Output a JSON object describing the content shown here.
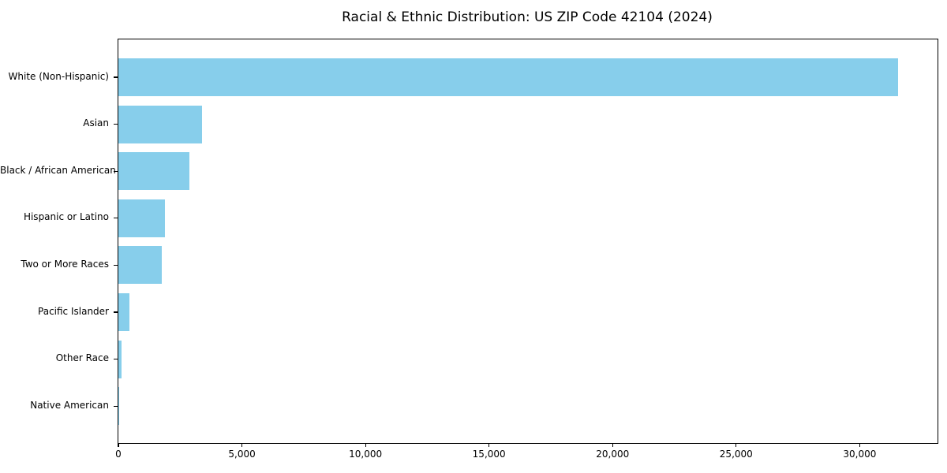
{
  "chart_data": {
    "type": "bar",
    "orientation": "horizontal",
    "title": "Racial & Ethnic Distribution: US ZIP Code 42104 (2024)",
    "categories": [
      "White (Non-Hispanic)",
      "Asian",
      "Black / African American",
      "Hispanic or Latino",
      "Two or More Races",
      "Pacific Islander",
      "Other Race",
      "Native American"
    ],
    "values": [
      31550,
      3400,
      2880,
      1900,
      1750,
      450,
      125,
      20
    ],
    "xlabel": "",
    "ylabel": "",
    "xlim": [
      0,
      33150
    ],
    "xticks": {
      "values": [
        0,
        5000,
        10000,
        15000,
        20000,
        25000,
        30000
      ],
      "labels": [
        "0",
        "5,000",
        "10,000",
        "15,000",
        "20,000",
        "25,000",
        "30,000"
      ]
    },
    "grid": false,
    "legend": null,
    "colors": {
      "bar": "#87CEEB",
      "text": "#000000",
      "spine": "#000000",
      "background": "#ffffff"
    }
  }
}
